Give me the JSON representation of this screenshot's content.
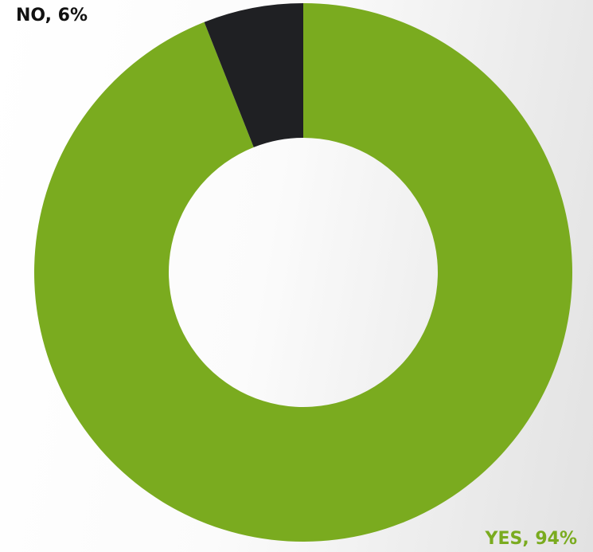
{
  "chart_data": {
    "type": "donut",
    "values": [
      94,
      6
    ],
    "value_labels": [
      "YES, 94%",
      "NO, 6%"
    ],
    "colors": [
      "#7aab1f",
      "#1f2023"
    ]
  }
}
